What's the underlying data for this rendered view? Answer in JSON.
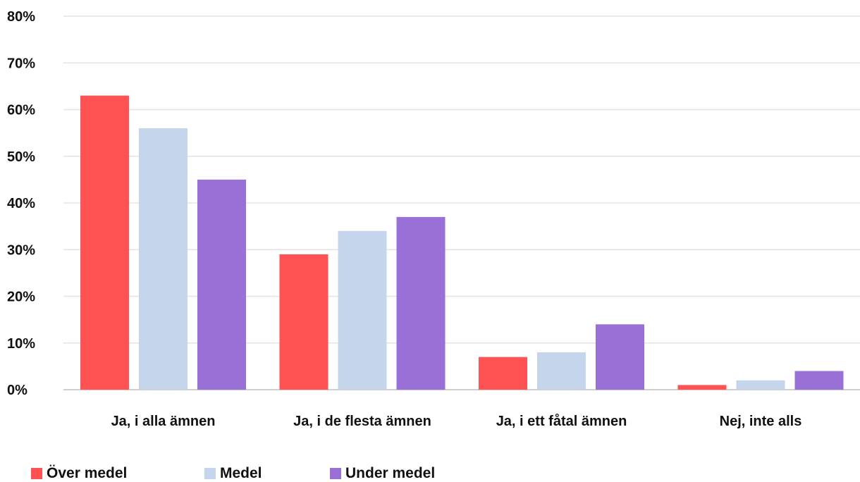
{
  "chart_data": {
    "type": "bar",
    "categories": [
      "Ja, i alla ämnen",
      "Ja, i de flesta ämnen",
      "Ja, i ett fåtal ämnen",
      "Nej, inte alls"
    ],
    "series": [
      {
        "name": "Över medel",
        "color": "#ff5252",
        "values": [
          63,
          29,
          7,
          1
        ]
      },
      {
        "name": "Medel",
        "color": "#c5d5ec",
        "values": [
          56,
          34,
          8,
          2
        ]
      },
      {
        "name": "Under medel",
        "color": "#9870d6",
        "values": [
          45,
          37,
          14,
          4
        ]
      }
    ],
    "ylim": [
      0,
      80
    ],
    "yticks": [
      0,
      10,
      20,
      30,
      40,
      50,
      60,
      70,
      80
    ],
    "ytick_labels": [
      "0%",
      "10%",
      "20%",
      "30%",
      "40%",
      "50%",
      "60%",
      "70%",
      "80%"
    ],
    "grid": true,
    "legend_position": "bottom-left"
  }
}
